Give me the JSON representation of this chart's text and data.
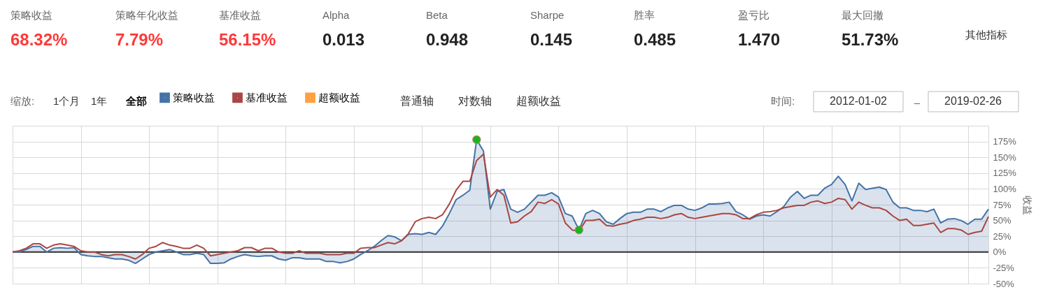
{
  "chart_data": {
    "type": "line",
    "categories": [
      null,
      null,
      null,
      null,
      null,
      null,
      null,
      null,
      null,
      null,
      null,
      null,
      null,
      null,
      null,
      null,
      null,
      null,
      null,
      null,
      null,
      null,
      null,
      null,
      null,
      null,
      null,
      null,
      null,
      null,
      null,
      null,
      null,
      null,
      null,
      null,
      null,
      null,
      null,
      null,
      null,
      null,
      null,
      null,
      null,
      null,
      null,
      null,
      null,
      null,
      null,
      null,
      null,
      null,
      null,
      null,
      null,
      null,
      null,
      null,
      null,
      null,
      null,
      null,
      null,
      null,
      null,
      null,
      null,
      null,
      null,
      null,
      null,
      null,
      null,
      null,
      null,
      null,
      null,
      null,
      null,
      null,
      null,
      null,
      null,
      null,
      null,
      null,
      null,
      null,
      null,
      null,
      null,
      null,
      null,
      null,
      null,
      null,
      null,
      null,
      null,
      null,
      null,
      null,
      null,
      null,
      null,
      null,
      null,
      null,
      null,
      null,
      null,
      null,
      null,
      null,
      null,
      null,
      null,
      null,
      null,
      null,
      null,
      null,
      null,
      null,
      null,
      null,
      null,
      null,
      null,
      null,
      null,
      null,
      null,
      null,
      null,
      null,
      null,
      null,
      null,
      null,
      null,
      null
    ],
    "series": [
      {
        "name": "策略收益",
        "type": "area",
        "color": "#4572a7",
        "values": [
          0,
          0,
          4,
          9,
          9,
          0,
          6,
          7,
          6,
          7,
          -4,
          -6,
          -7,
          -7,
          -9,
          -11,
          -11,
          -13,
          -18,
          -11,
          -4,
          0,
          2,
          4,
          0,
          -4,
          -4,
          -2,
          -4,
          -18,
          -18,
          -17,
          -11,
          -7,
          -4,
          -6,
          -7,
          -6,
          -6,
          -11,
          -13,
          -9,
          -9,
          -11,
          -11,
          -11,
          -15,
          -15,
          -17,
          -15,
          -11,
          -4,
          2,
          9,
          18,
          26,
          24,
          18,
          28,
          29,
          28,
          31,
          28,
          41,
          61,
          83,
          90,
          98,
          178,
          160,
          68,
          96,
          99,
          68,
          63,
          68,
          79,
          90,
          90,
          94,
          87,
          61,
          57,
          35,
          61,
          66,
          61,
          48,
          44,
          53,
          61,
          63,
          63,
          68,
          68,
          64,
          70,
          74,
          74,
          68,
          66,
          70,
          76,
          76,
          77,
          79,
          64,
          59,
          52,
          57,
          59,
          57,
          64,
          72,
          87,
          96,
          85,
          90,
          90,
          101,
          107,
          120,
          107,
          81,
          109,
          99,
          101,
          103,
          99,
          79,
          70,
          70,
          66,
          66,
          64,
          68,
          46,
          52,
          53,
          50,
          44,
          52,
          52,
          68
        ]
      },
      {
        "name": "基准收益",
        "color": "#aa4643",
        "values": [
          0,
          2,
          6,
          13,
          13,
          6,
          11,
          13,
          11,
          9,
          2,
          0,
          0,
          -4,
          -6,
          -4,
          -4,
          -7,
          -11,
          -4,
          6,
          9,
          15,
          11,
          9,
          6,
          6,
          11,
          6,
          -6,
          -4,
          -2,
          0,
          2,
          7,
          7,
          2,
          6,
          6,
          0,
          -2,
          -2,
          2,
          -2,
          -2,
          -2,
          -4,
          -4,
          -4,
          -2,
          -2,
          6,
          7,
          7,
          11,
          15,
          13,
          18,
          29,
          48,
          53,
          55,
          53,
          59,
          76,
          98,
          112,
          112,
          145,
          155,
          87,
          99,
          90,
          46,
          48,
          57,
          64,
          79,
          77,
          83,
          76,
          46,
          35,
          33,
          50,
          50,
          52,
          42,
          41,
          44,
          46,
          50,
          52,
          55,
          55,
          53,
          55,
          59,
          61,
          55,
          53,
          55,
          57,
          59,
          61,
          61,
          59,
          53,
          53,
          59,
          63,
          64,
          66,
          70,
          72,
          74,
          74,
          79,
          81,
          77,
          79,
          85,
          83,
          68,
          79,
          74,
          70,
          70,
          66,
          57,
          50,
          52,
          42,
          42,
          44,
          46,
          31,
          37,
          37,
          35,
          28,
          31,
          33,
          56
        ]
      },
      {
        "name": "超额收益",
        "type": "line",
        "color": "#ffa040",
        "values": [
          null,
          null,
          null,
          null,
          null,
          null,
          null,
          null,
          null,
          null,
          null,
          null,
          null,
          null,
          null,
          null,
          null,
          null,
          null,
          null,
          null,
          null,
          null,
          null,
          null,
          null,
          null,
          null,
          null,
          null,
          null,
          null,
          null,
          null,
          null,
          null,
          null,
          null,
          null,
          null,
          null,
          null,
          null,
          null,
          null,
          null,
          null,
          null,
          null,
          null,
          null,
          null,
          null,
          null,
          null,
          null,
          null,
          null,
          null,
          null,
          null,
          null,
          null,
          null,
          null,
          null,
          null,
          null,
          null,
          null,
          null,
          null,
          null,
          null,
          null,
          null,
          null,
          null,
          null,
          null,
          null,
          null,
          null,
          null,
          null,
          null,
          null,
          null,
          null,
          null,
          null,
          null,
          null,
          null,
          null,
          null,
          null,
          null,
          null,
          null,
          null,
          null,
          null,
          null,
          null,
          null,
          null,
          null,
          null,
          null,
          null,
          null,
          null,
          null,
          null,
          null,
          null,
          null,
          null,
          null,
          null,
          null,
          null,
          null,
          null,
          null,
          null,
          null,
          null,
          null,
          null,
          null,
          null,
          null,
          null,
          null,
          null,
          null,
          null,
          null,
          null,
          null,
          null,
          null
        ]
      },
      {
        "type": "scatter",
        "marker": "circle",
        "color": "#1db31d",
        "values": [
          null,
          null,
          null,
          null,
          null,
          null,
          null,
          null,
          null,
          null,
          null,
          null,
          null,
          null,
          null,
          null,
          null,
          null,
          null,
          null,
          null,
          null,
          null,
          null,
          null,
          null,
          null,
          null,
          null,
          null,
          null,
          null,
          null,
          null,
          null,
          null,
          null,
          null,
          null,
          null,
          null,
          null,
          null,
          null,
          null,
          null,
          null,
          null,
          null,
          null,
          null,
          null,
          null,
          null,
          null,
          null,
          null,
          null,
          null,
          null,
          null,
          null,
          null,
          null,
          null,
          null,
          null,
          null,
          178,
          null,
          null,
          null,
          null,
          null,
          null,
          null,
          null,
          null,
          null,
          null,
          null,
          null,
          null,
          35,
          null,
          null,
          null,
          null,
          null,
          null,
          null,
          null,
          null,
          null,
          null,
          null,
          null,
          null,
          null,
          null,
          null,
          null,
          null,
          null,
          null,
          null,
          null,
          null,
          null,
          null,
          null,
          null,
          null,
          null,
          null,
          null,
          null,
          null,
          null,
          null,
          null,
          null,
          null,
          null,
          null,
          null,
          null,
          null,
          null,
          null,
          null,
          null,
          null,
          null,
          null,
          null,
          null,
          null,
          null,
          null,
          null,
          null,
          null,
          null
        ]
      }
    ],
    "ylabel": "收益",
    "ylim": [
      -50,
      200
    ],
    "yticks": [
      {
        "value": -50,
        "label": "-50%"
      },
      {
        "value": -25,
        "label": "-25%"
      },
      {
        "value": 0,
        "label": "0%"
      },
      {
        "value": 25,
        "label": "25%"
      },
      {
        "value": 50,
        "label": "50%"
      },
      {
        "value": 75,
        "label": "75%"
      },
      {
        "value": 100,
        "label": "100%"
      },
      {
        "value": 125,
        "label": "125%"
      },
      {
        "value": 150,
        "label": "150%"
      },
      {
        "value": 175,
        "label": "175%"
      }
    ],
    "ref_lines": [
      {
        "axis": "y",
        "value": 0,
        "color": "#333333"
      }
    ],
    "grid": true,
    "tick_labels": "y",
    "legend": "top left",
    "annotations": [
      "策略收益",
      "68.32%",
      "策略年化收益",
      "7.79%",
      "基准收益",
      "56.15%",
      "Alpha",
      "0.013",
      "Beta",
      "0.948",
      "Sharpe",
      "0.145",
      "胜率",
      "0.485",
      "盈亏比",
      "1.470",
      "最大回撤",
      "51.73%",
      "其他指标",
      "缩放:",
      "1个月",
      "1年",
      "全部",
      "普通轴",
      "对数轴",
      "超额收益",
      "时间:",
      "2012-01-02",
      "–",
      "2019-02-26"
    ]
  }
}
